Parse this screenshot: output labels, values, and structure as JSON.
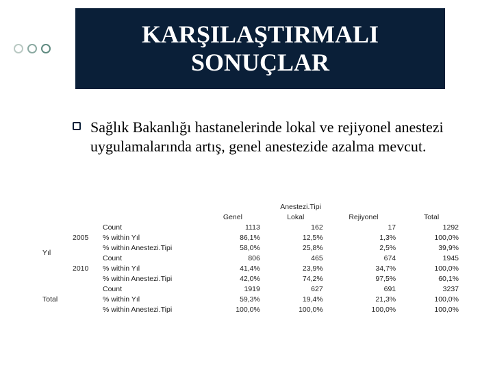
{
  "decor": {
    "dot_colors": [
      "#b9c9c3",
      "#8aa9a1",
      "#5f8a80"
    ]
  },
  "title": "KARŞILAŞTIRMALI SONUÇLAR",
  "title_bg": "#0a1f38",
  "title_color": "#ffffff",
  "bullet": {
    "text": "Sağlık Bakanlığı hastanelerinde lokal ve rejiyonel anestezi uygulamalarında artış, genel anestezide azalma mevcut."
  },
  "table": {
    "type": "table",
    "super_header": "Anestezi.Tipi",
    "columns": [
      "Genel",
      "Lokal",
      "Rejiyonel",
      "Total"
    ],
    "row_stubs": {
      "group_label": "Yıl",
      "total_label": "Total",
      "years": [
        "2005",
        "2010"
      ],
      "metrics": [
        "Count",
        "% within Yıl",
        "% within Anestezi.Tipi"
      ]
    },
    "rows": [
      [
        "1113",
        "162",
        "17",
        "1292"
      ],
      [
        "86,1%",
        "12,5%",
        "1,3%",
        "100,0%"
      ],
      [
        "58,0%",
        "25,8%",
        "2,5%",
        "39,9%"
      ],
      [
        "806",
        "465",
        "674",
        "1945"
      ],
      [
        "41,4%",
        "23,9%",
        "34,7%",
        "100,0%"
      ],
      [
        "42,0%",
        "74,2%",
        "97,5%",
        "60,1%"
      ],
      [
        "1919",
        "627",
        "691",
        "3237"
      ],
      [
        "59,3%",
        "19,4%",
        "21,3%",
        "100,0%"
      ],
      [
        "100,0%",
        "100,0%",
        "100,0%",
        "100,0%"
      ]
    ],
    "font_family": "Arial",
    "font_size_pt": 8,
    "border_color": "#444444",
    "text_color": "#222222",
    "background_color": "#ffffff"
  }
}
